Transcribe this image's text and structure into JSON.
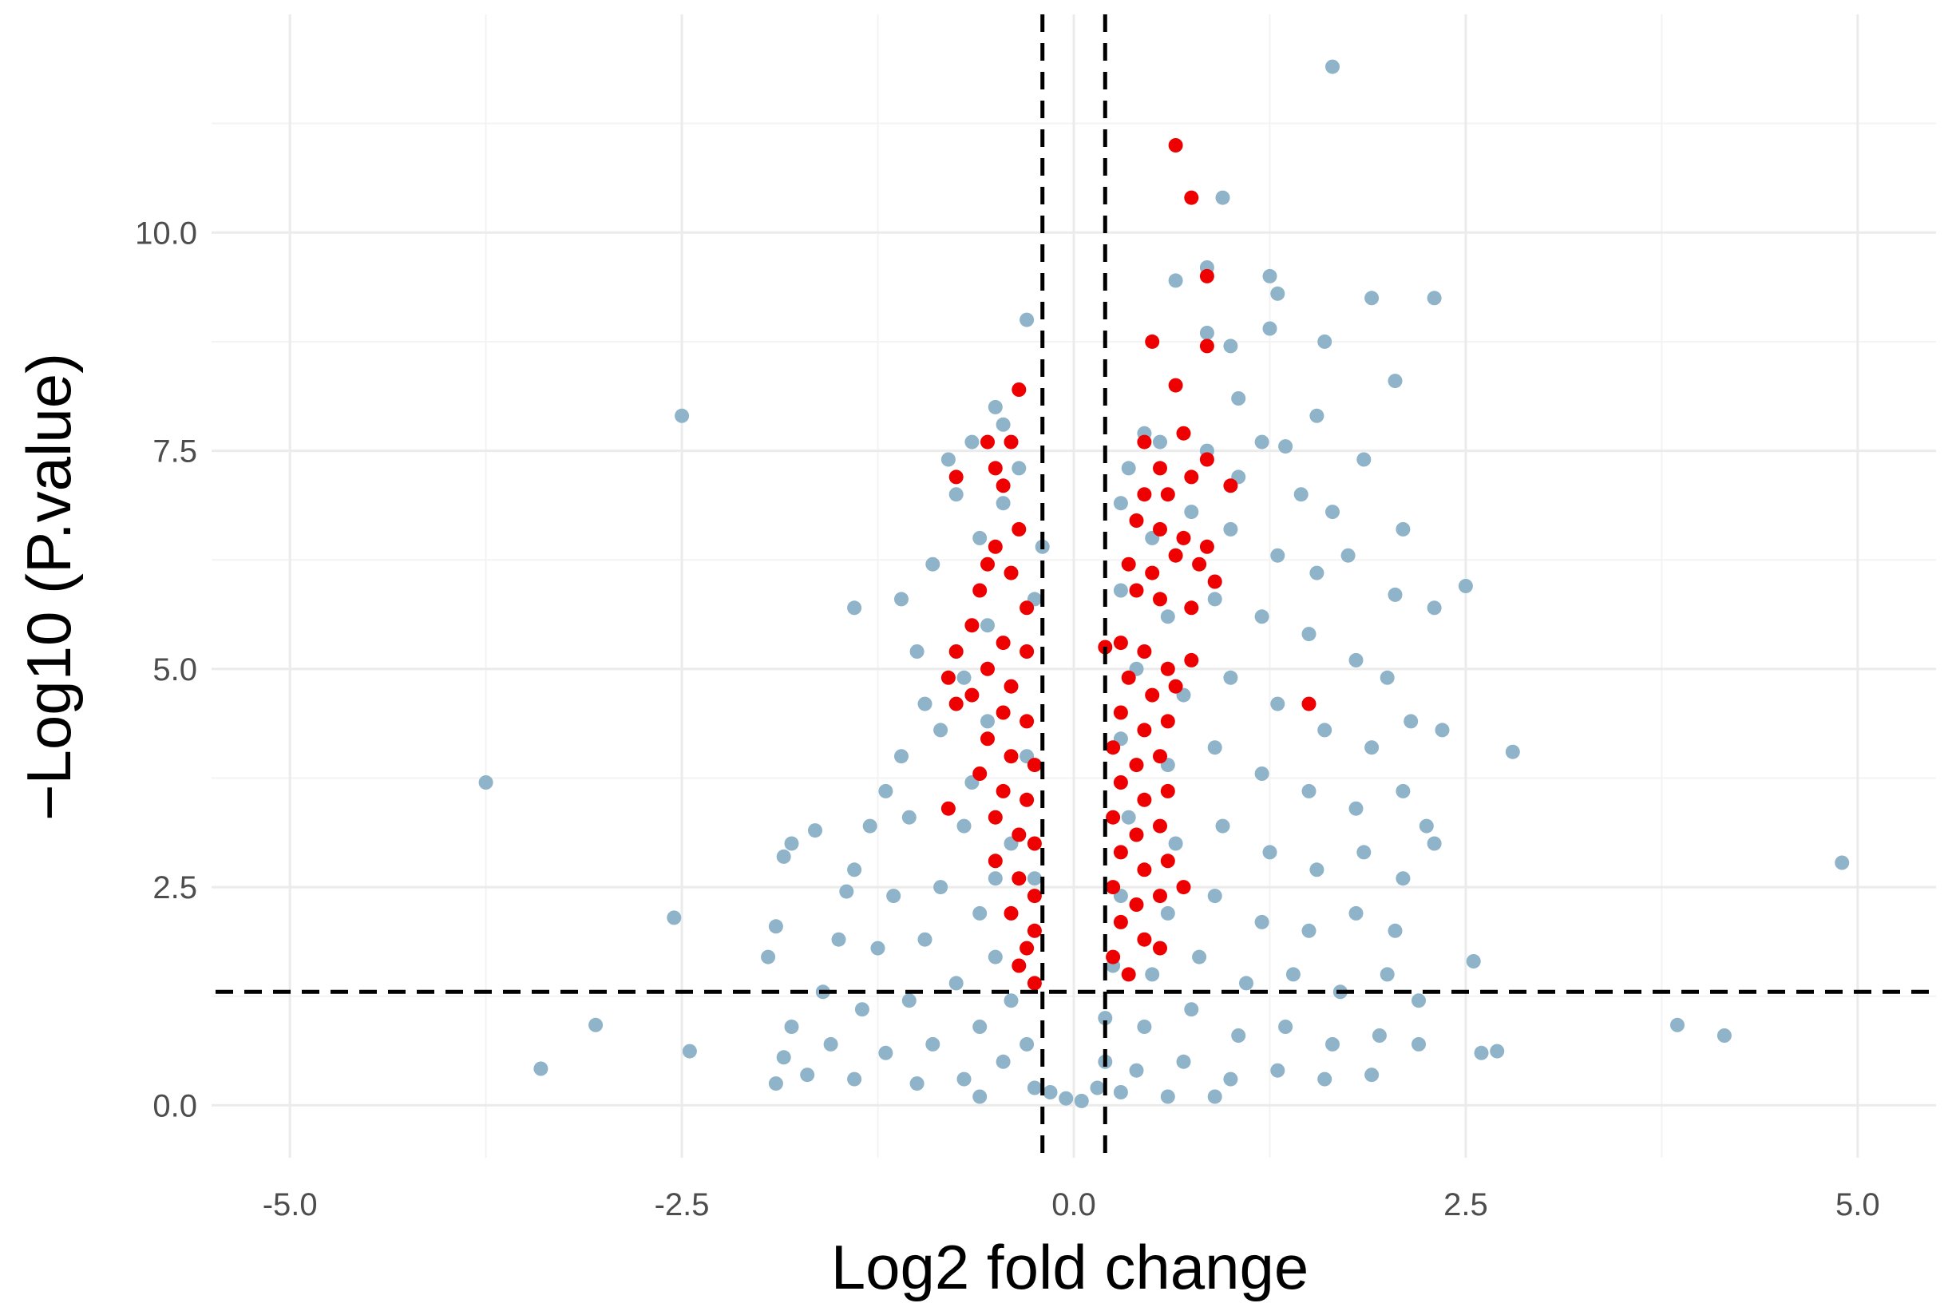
{
  "chart_data": {
    "type": "scatter",
    "title": "",
    "xlabel": "Log2 fold change",
    "ylabel": "−Log10 (P.value)",
    "xlim": [
      -5.5,
      5.5
    ],
    "ylim": [
      -0.6,
      12.5
    ],
    "x_ticks": [
      "-5.0",
      "-2.5",
      "0.0",
      "2.5",
      "5.0"
    ],
    "y_ticks": [
      "0.0",
      "2.5",
      "5.0",
      "7.5",
      "10.0"
    ],
    "x_tick_values": [
      -5.0,
      -2.5,
      0.0,
      2.5,
      5.0
    ],
    "y_tick_values": [
      0.0,
      2.5,
      5.0,
      7.5,
      10.0
    ],
    "grid": true,
    "thresholds": {
      "log2fc": [
        -0.2,
        0.2
      ],
      "neg_log10_p": 1.3
    },
    "colors": {
      "not_significant": "#8fb3c8",
      "significant": "#ee0000",
      "threshold_line": "#000000"
    },
    "series": [
      {
        "color": "#8fb3c8",
        "points": [
          [
            1.65,
            11.9
          ],
          [
            0.95,
            10.4
          ],
          [
            0.85,
            9.6
          ],
          [
            1.25,
            9.5
          ],
          [
            1.3,
            9.3
          ],
          [
            1.9,
            9.25
          ],
          [
            2.3,
            9.25
          ],
          [
            -0.3,
            9.0
          ],
          [
            0.65,
            9.45
          ],
          [
            0.85,
            8.85
          ],
          [
            1.25,
            8.9
          ],
          [
            1.6,
            8.75
          ],
          [
            1.0,
            8.7
          ],
          [
            -2.5,
            7.9
          ],
          [
            2.05,
            8.3
          ],
          [
            1.55,
            7.9
          ],
          [
            1.35,
            7.55
          ],
          [
            1.05,
            8.1
          ],
          [
            1.85,
            7.4
          ],
          [
            2.1,
            6.6
          ],
          [
            2.5,
            5.95
          ],
          [
            2.3,
            5.7
          ],
          [
            2.05,
            5.85
          ],
          [
            -1.4,
            5.7
          ],
          [
            -1.1,
            5.8
          ],
          [
            -3.75,
            3.7
          ],
          [
            -2.55,
            2.15
          ],
          [
            -3.05,
            0.92
          ],
          [
            -3.4,
            0.42
          ],
          [
            -2.45,
            0.62
          ],
          [
            4.9,
            2.78
          ],
          [
            3.85,
            0.92
          ],
          [
            4.15,
            0.8
          ],
          [
            2.8,
            4.05
          ],
          [
            2.55,
            1.65
          ],
          [
            2.6,
            0.6
          ],
          [
            2.7,
            0.62
          ],
          [
            -1.65,
            3.15
          ],
          [
            -1.85,
            2.85
          ],
          [
            -1.8,
            3.0
          ],
          [
            -1.45,
            2.45
          ],
          [
            -1.9,
            2.05
          ],
          [
            -1.95,
            1.7
          ],
          [
            -0.5,
            8.0
          ],
          [
            -0.45,
            7.8
          ],
          [
            -0.8,
            7.4
          ],
          [
            -0.65,
            7.6
          ],
          [
            -0.75,
            7.0
          ],
          [
            -0.35,
            7.3
          ],
          [
            -0.9,
            6.2
          ],
          [
            -1.0,
            5.2
          ],
          [
            -0.95,
            4.6
          ],
          [
            -0.85,
            4.3
          ],
          [
            -1.1,
            4.0
          ],
          [
            -1.2,
            3.6
          ],
          [
            -1.3,
            3.2
          ],
          [
            -1.05,
            3.3
          ],
          [
            -0.7,
            3.2
          ],
          [
            -1.4,
            2.7
          ],
          [
            -1.15,
            2.4
          ],
          [
            -0.85,
            2.5
          ],
          [
            -1.5,
            1.9
          ],
          [
            -1.25,
            1.8
          ],
          [
            -0.95,
            1.9
          ],
          [
            -0.6,
            2.2
          ],
          [
            -1.6,
            1.3
          ],
          [
            -1.35,
            1.1
          ],
          [
            -1.05,
            1.2
          ],
          [
            -0.75,
            1.4
          ],
          [
            -0.5,
            1.7
          ],
          [
            -1.8,
            0.9
          ],
          [
            -1.55,
            0.7
          ],
          [
            -1.2,
            0.6
          ],
          [
            -0.9,
            0.7
          ],
          [
            -0.6,
            0.9
          ],
          [
            -0.4,
            1.2
          ],
          [
            -1.7,
            0.35
          ],
          [
            -1.4,
            0.3
          ],
          [
            -1.0,
            0.25
          ],
          [
            -0.7,
            0.3
          ],
          [
            -0.45,
            0.5
          ],
          [
            -0.3,
            0.7
          ],
          [
            -0.25,
            0.2
          ],
          [
            -1.9,
            0.25
          ],
          [
            -1.85,
            0.55
          ],
          [
            -0.55,
            5.5
          ],
          [
            -0.6,
            6.5
          ],
          [
            -0.45,
            6.9
          ],
          [
            -0.2,
            6.4
          ],
          [
            -0.25,
            5.8
          ],
          [
            -0.7,
            4.9
          ],
          [
            -0.55,
            4.4
          ],
          [
            -0.3,
            4.0
          ],
          [
            -0.65,
            3.7
          ],
          [
            -0.4,
            3.0
          ],
          [
            -0.25,
            2.6
          ],
          [
            -0.5,
            2.6
          ],
          [
            0.45,
            7.7
          ],
          [
            0.55,
            7.6
          ],
          [
            0.35,
            7.3
          ],
          [
            0.85,
            7.5
          ],
          [
            1.05,
            7.2
          ],
          [
            1.2,
            7.6
          ],
          [
            0.3,
            6.9
          ],
          [
            0.5,
            6.5
          ],
          [
            0.75,
            6.8
          ],
          [
            1.0,
            6.6
          ],
          [
            1.3,
            6.3
          ],
          [
            1.55,
            6.1
          ],
          [
            1.75,
            6.3
          ],
          [
            1.45,
            7.0
          ],
          [
            1.65,
            6.8
          ],
          [
            0.3,
            5.9
          ],
          [
            0.6,
            5.6
          ],
          [
            0.9,
            5.8
          ],
          [
            1.2,
            5.6
          ],
          [
            1.5,
            5.4
          ],
          [
            1.8,
            5.1
          ],
          [
            2.0,
            4.9
          ],
          [
            0.4,
            5.0
          ],
          [
            0.7,
            4.7
          ],
          [
            1.0,
            4.9
          ],
          [
            1.3,
            4.6
          ],
          [
            1.6,
            4.3
          ],
          [
            1.9,
            4.1
          ],
          [
            2.15,
            4.4
          ],
          [
            2.35,
            4.3
          ],
          [
            0.3,
            4.2
          ],
          [
            0.6,
            3.9
          ],
          [
            0.9,
            4.1
          ],
          [
            1.2,
            3.8
          ],
          [
            1.5,
            3.6
          ],
          [
            1.8,
            3.4
          ],
          [
            2.1,
            3.6
          ],
          [
            2.25,
            3.2
          ],
          [
            0.35,
            3.3
          ],
          [
            0.65,
            3.0
          ],
          [
            0.95,
            3.2
          ],
          [
            1.25,
            2.9
          ],
          [
            1.55,
            2.7
          ],
          [
            1.85,
            2.9
          ],
          [
            2.1,
            2.6
          ],
          [
            2.3,
            3.0
          ],
          [
            0.3,
            2.4
          ],
          [
            0.6,
            2.2
          ],
          [
            0.9,
            2.4
          ],
          [
            1.2,
            2.1
          ],
          [
            1.5,
            2.0
          ],
          [
            1.8,
            2.2
          ],
          [
            2.05,
            2.0
          ],
          [
            0.25,
            1.6
          ],
          [
            0.5,
            1.5
          ],
          [
            0.8,
            1.7
          ],
          [
            1.1,
            1.4
          ],
          [
            1.4,
            1.5
          ],
          [
            1.7,
            1.3
          ],
          [
            2.0,
            1.5
          ],
          [
            2.2,
            1.2
          ],
          [
            0.2,
            1.0
          ],
          [
            0.45,
            0.9
          ],
          [
            0.75,
            1.1
          ],
          [
            1.05,
            0.8
          ],
          [
            1.35,
            0.9
          ],
          [
            1.65,
            0.7
          ],
          [
            1.95,
            0.8
          ],
          [
            2.2,
            0.7
          ],
          [
            0.2,
            0.5
          ],
          [
            0.4,
            0.4
          ],
          [
            0.7,
            0.5
          ],
          [
            1.0,
            0.3
          ],
          [
            1.3,
            0.4
          ],
          [
            1.6,
            0.3
          ],
          [
            1.9,
            0.35
          ],
          [
            0.15,
            0.2
          ],
          [
            0.3,
            0.15
          ],
          [
            -0.15,
            0.15
          ],
          [
            0.05,
            0.05
          ],
          [
            -0.05,
            0.08
          ],
          [
            0.6,
            0.1
          ],
          [
            -0.6,
            0.1
          ],
          [
            0.9,
            0.1
          ]
        ]
      },
      {
        "color": "#ee0000",
        "points": [
          [
            0.65,
            11.0
          ],
          [
            0.75,
            10.4
          ],
          [
            0.85,
            9.5
          ],
          [
            0.5,
            8.75
          ],
          [
            0.65,
            8.25
          ],
          [
            0.85,
            8.7
          ],
          [
            -0.35,
            8.2
          ],
          [
            -0.55,
            7.6
          ],
          [
            -0.4,
            7.6
          ],
          [
            -0.75,
            7.2
          ],
          [
            -0.5,
            7.3
          ],
          [
            -0.45,
            7.1
          ],
          [
            0.45,
            7.6
          ],
          [
            0.55,
            7.3
          ],
          [
            0.7,
            7.7
          ],
          [
            0.85,
            7.4
          ],
          [
            0.45,
            7.0
          ],
          [
            0.6,
            7.0
          ],
          [
            0.75,
            7.2
          ],
          [
            0.4,
            6.7
          ],
          [
            0.55,
            6.6
          ],
          [
            0.7,
            6.5
          ],
          [
            0.85,
            6.4
          ],
          [
            0.35,
            6.2
          ],
          [
            0.5,
            6.1
          ],
          [
            0.65,
            6.3
          ],
          [
            0.8,
            6.2
          ],
          [
            0.4,
            5.9
          ],
          [
            0.55,
            5.8
          ],
          [
            0.75,
            5.7
          ],
          [
            -0.35,
            6.6
          ],
          [
            -0.5,
            6.4
          ],
          [
            -0.55,
            6.2
          ],
          [
            -0.4,
            6.1
          ],
          [
            -0.6,
            5.9
          ],
          [
            -0.3,
            5.7
          ],
          [
            -0.65,
            5.5
          ],
          [
            -0.45,
            5.3
          ],
          [
            -0.3,
            5.2
          ],
          [
            -0.75,
            5.2
          ],
          [
            -0.55,
            5.0
          ],
          [
            -0.4,
            4.8
          ],
          [
            -0.65,
            4.7
          ],
          [
            -0.45,
            4.5
          ],
          [
            -0.3,
            4.4
          ],
          [
            -0.55,
            4.2
          ],
          [
            -0.4,
            4.0
          ],
          [
            -0.25,
            3.9
          ],
          [
            -0.6,
            3.8
          ],
          [
            -0.45,
            3.6
          ],
          [
            -0.3,
            3.5
          ],
          [
            -0.5,
            3.3
          ],
          [
            -0.35,
            3.1
          ],
          [
            -0.25,
            3.0
          ],
          [
            -0.5,
            2.8
          ],
          [
            -0.35,
            2.6
          ],
          [
            -0.25,
            2.4
          ],
          [
            -0.4,
            2.2
          ],
          [
            -0.25,
            2.0
          ],
          [
            -0.3,
            1.8
          ],
          [
            -0.35,
            1.6
          ],
          [
            -0.25,
            1.4
          ],
          [
            -0.8,
            3.4
          ],
          [
            -0.75,
            4.6
          ],
          [
            -0.8,
            4.9
          ],
          [
            0.3,
            5.3
          ],
          [
            0.45,
            5.2
          ],
          [
            0.6,
            5.0
          ],
          [
            0.75,
            5.1
          ],
          [
            0.35,
            4.9
          ],
          [
            0.5,
            4.7
          ],
          [
            0.65,
            4.8
          ],
          [
            0.3,
            4.5
          ],
          [
            0.45,
            4.3
          ],
          [
            0.6,
            4.4
          ],
          [
            0.25,
            4.1
          ],
          [
            0.4,
            3.9
          ],
          [
            0.55,
            4.0
          ],
          [
            0.3,
            3.7
          ],
          [
            0.45,
            3.5
          ],
          [
            0.6,
            3.6
          ],
          [
            0.25,
            3.3
          ],
          [
            0.4,
            3.1
          ],
          [
            0.55,
            3.2
          ],
          [
            0.3,
            2.9
          ],
          [
            0.45,
            2.7
          ],
          [
            0.6,
            2.8
          ],
          [
            0.25,
            2.5
          ],
          [
            0.4,
            2.3
          ],
          [
            0.55,
            2.4
          ],
          [
            0.3,
            2.1
          ],
          [
            0.45,
            1.9
          ],
          [
            0.25,
            1.7
          ],
          [
            0.35,
            1.5
          ],
          [
            0.55,
            1.8
          ],
          [
            0.2,
            5.25
          ],
          [
            1.0,
            7.1
          ],
          [
            1.5,
            4.6
          ],
          [
            0.9,
            6.0
          ],
          [
            0.7,
            2.5
          ]
        ]
      }
    ]
  }
}
